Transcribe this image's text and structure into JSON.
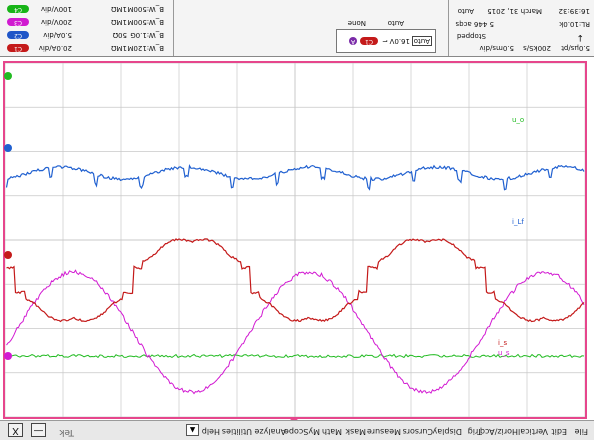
{
  "menu": {
    "items": [
      "File",
      "Edit",
      "Vertical",
      "Horiz/Acq",
      "Trig",
      "Display",
      "Cursors",
      "Measure",
      "Mask",
      "Math",
      "MyScope",
      "Analyze",
      "Utilities",
      "Help"
    ],
    "tek_label": "Tek",
    "minimize": "—",
    "close": "X",
    "arrow": "▲"
  },
  "channels": [
    {
      "id": "C1",
      "scale": "20.0A/div",
      "coupling": "1MΩ",
      "bw": "B_W:120M",
      "color": "#d42424"
    },
    {
      "id": "C2",
      "scale": "5.0A/div",
      "coupling": "50Ω",
      "bw": "B_W:1.0G",
      "color": "#2056c8"
    },
    {
      "id": "C3",
      "scale": "200V/div",
      "coupling": "1MΩ",
      "bw": "B_W:500M",
      "color": "#d01ad0"
    },
    {
      "id": "C4",
      "scale": "100V/div",
      "coupling": "1MΩ",
      "bw": "B_W:500M",
      "color": "#18b418"
    }
  ],
  "trigger": {
    "source": "C1",
    "slope": "⌐",
    "level": "16.0V",
    "mode_box": "Auto",
    "mode": "Auto",
    "type": "None",
    "badge": "A"
  },
  "acq": {
    "timebase": "5.0ms/div",
    "sample_rate": "200kS/s",
    "record": "5.0µs/pt",
    "state": "Stopped",
    "acqs": "5 446 acqs",
    "rl": "RL:10.0k",
    "mode": "Auto",
    "date": "March 31, 2015",
    "time": "16:39:32"
  },
  "waveform_labels": {
    "c4_label": "u_o",
    "c2_label": "i_Lf",
    "c1_label": "i_s",
    "c3_label": "u_s"
  },
  "colors": {
    "c1": "#c41a1a",
    "c2": "#2060d0",
    "c3": "#d21ad2",
    "c4": "#22bb22",
    "grid": "#c8c8c8",
    "frame": "#e6468c"
  }
}
